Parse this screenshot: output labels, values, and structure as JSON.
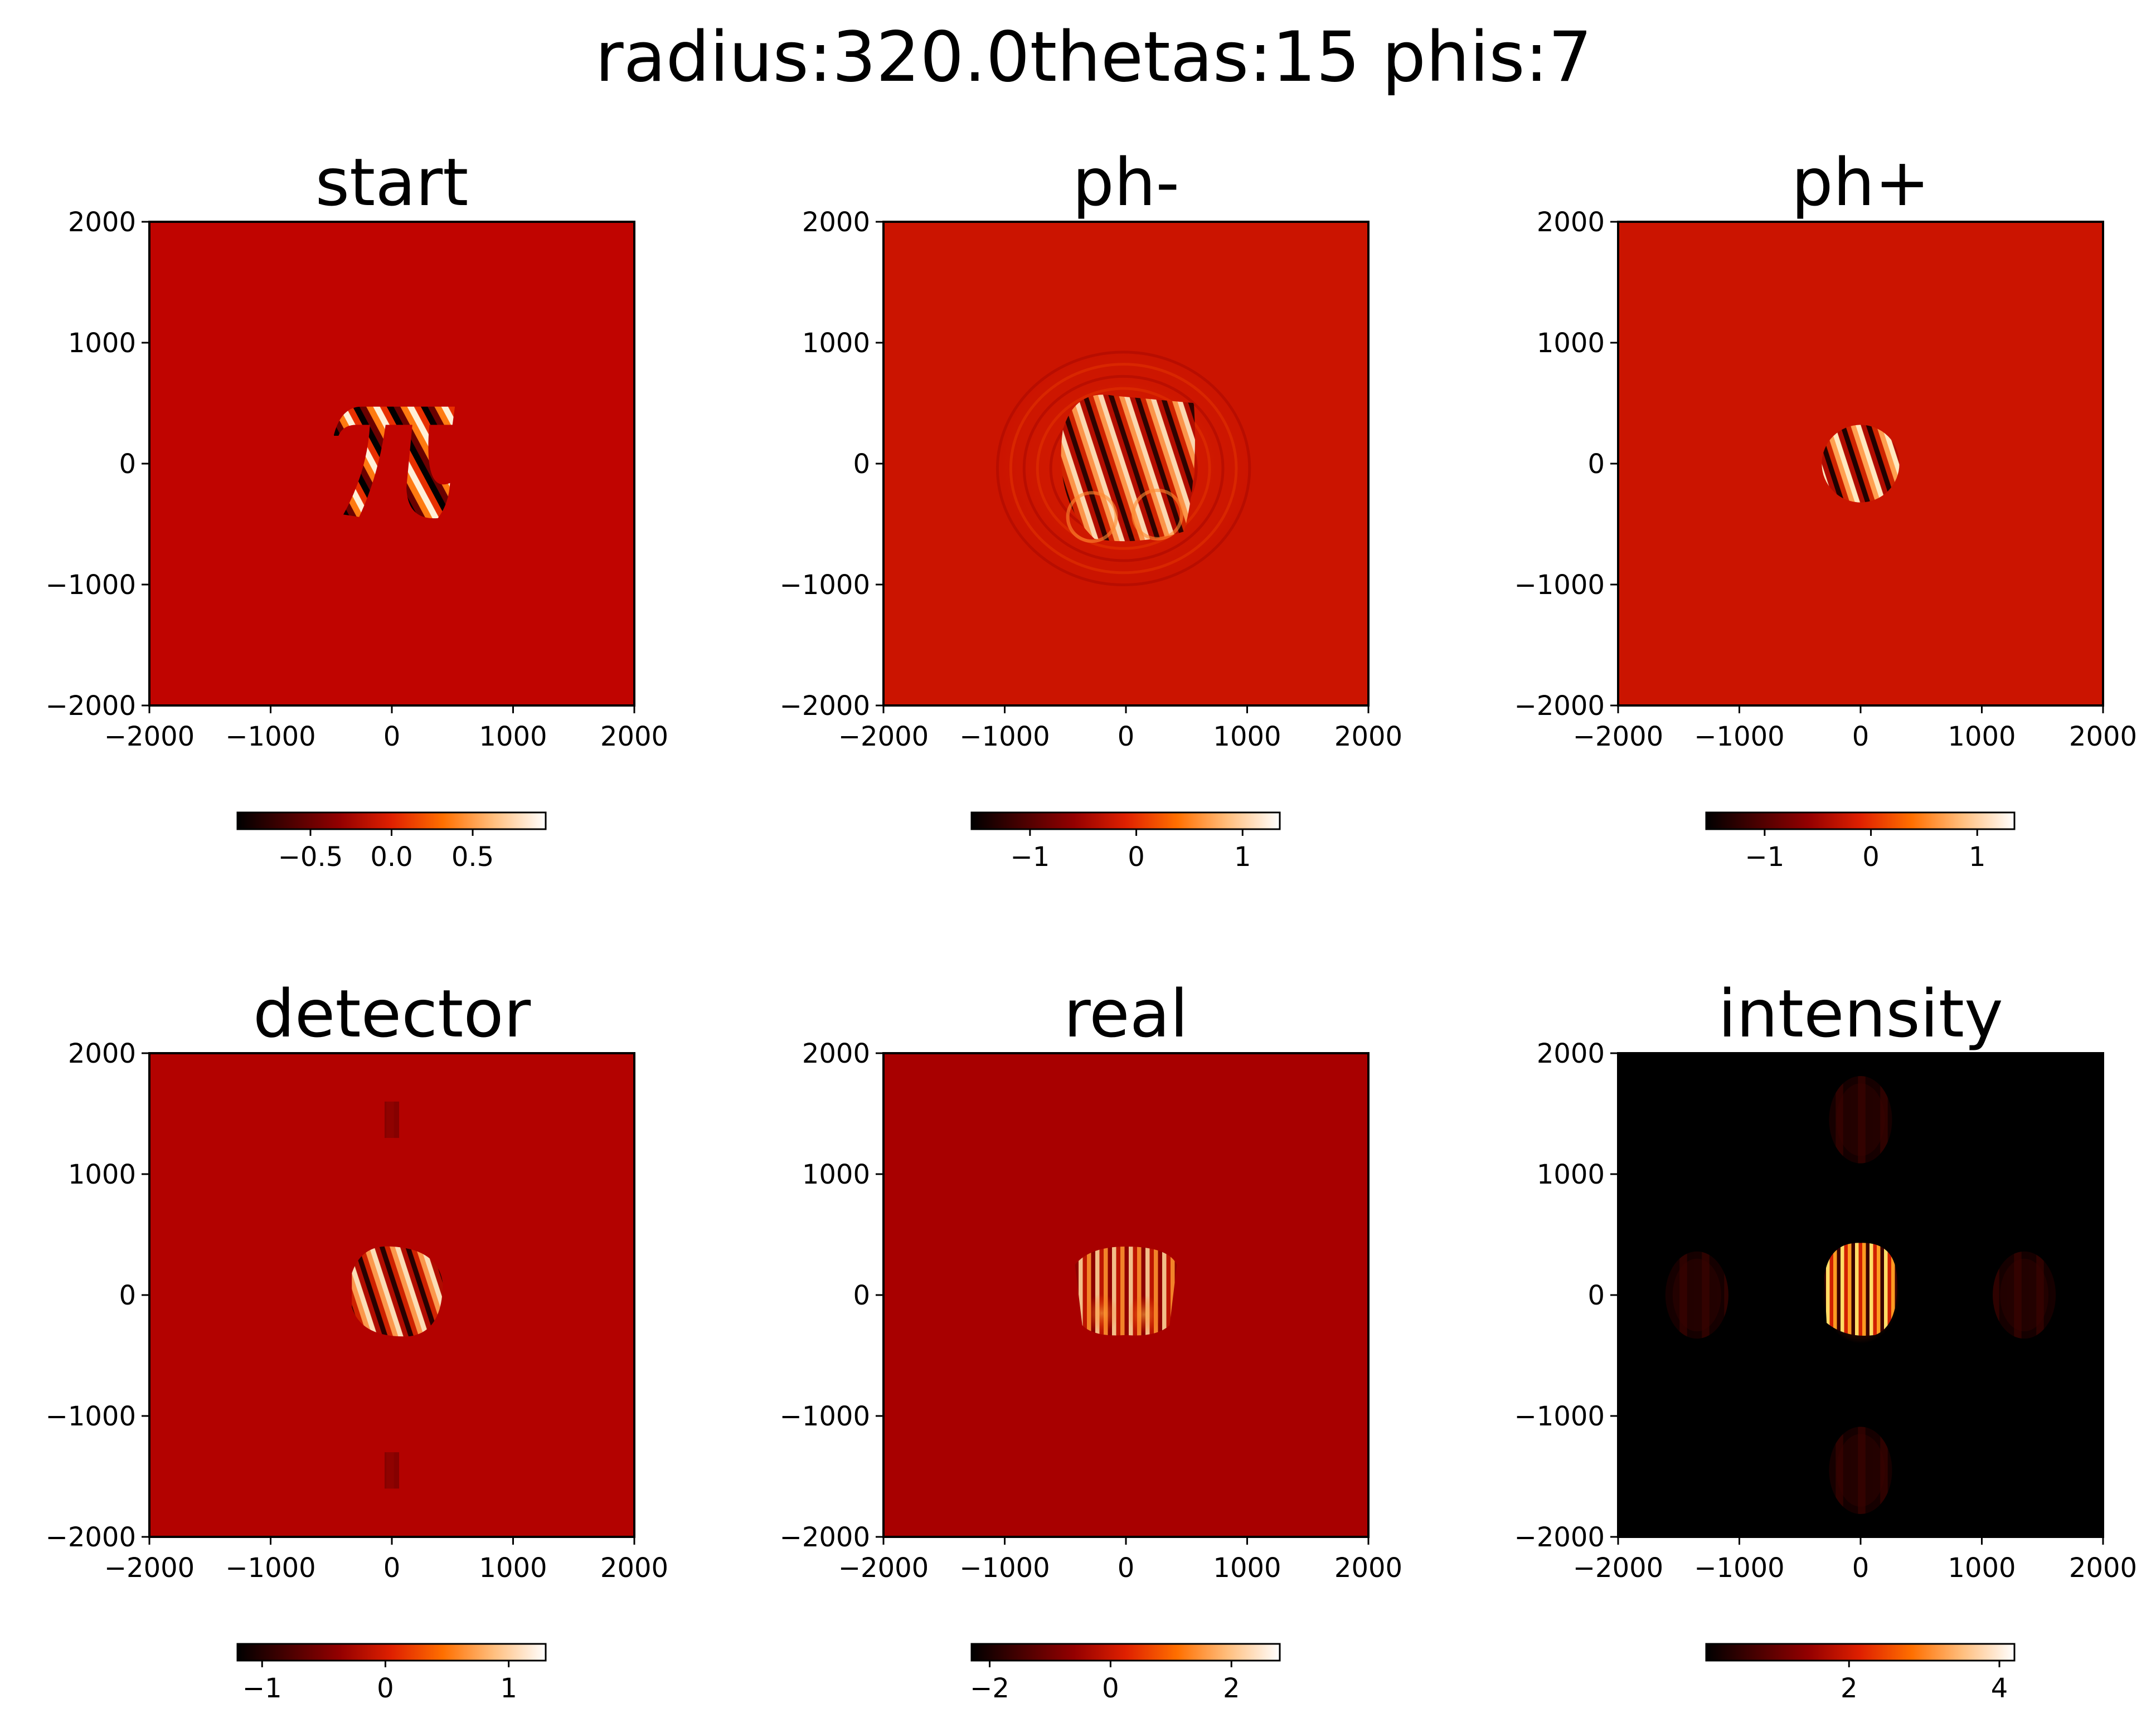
{
  "figure": {
    "suptitle": "radius:320.0thetas:15 phis:7"
  },
  "colormap": {
    "name": "gist_heat",
    "stops": [
      "#000000",
      "#4a0000",
      "#940000",
      "#df2000",
      "#ff6f00",
      "#ffbf7f",
      "#ffffff"
    ]
  },
  "chart_data": [
    {
      "type": "heatmap",
      "title": "start",
      "xlim": [
        -2000,
        2000
      ],
      "ylim": [
        -2000,
        2000
      ],
      "xticks": [
        "−2000",
        "−1000",
        "0",
        "1000",
        "2000"
      ],
      "yticks": [
        "2000",
        "1000",
        "0",
        "−1000",
        "−2000"
      ],
      "background_color": "#c00400",
      "pattern": "pi-glyph-striped",
      "colorbar": {
        "range": [
          -0.95,
          0.95
        ],
        "ticks": [
          -0.5,
          0.0,
          0.5
        ],
        "tick_labels": [
          "−0.5",
          "0.0",
          "0.5"
        ]
      }
    },
    {
      "type": "heatmap",
      "title": "ph-",
      "xlim": [
        -2000,
        2000
      ],
      "ylim": [
        -2000,
        2000
      ],
      "xticks": [
        "−2000",
        "−1000",
        "0",
        "1000",
        "2000"
      ],
      "yticks": [
        "2000",
        "1000",
        "0",
        "−1000",
        "−2000"
      ],
      "background_color": "#cb1400",
      "pattern": "diffracted-pi-ripples",
      "colorbar": {
        "range": [
          -1.55,
          1.35
        ],
        "ticks": [
          -1,
          0,
          1
        ],
        "tick_labels": [
          "−1",
          "0",
          "1"
        ]
      }
    },
    {
      "type": "heatmap",
      "title": "ph+",
      "xlim": [
        -2000,
        2000
      ],
      "ylim": [
        -2000,
        2000
      ],
      "xticks": [
        "−2000",
        "−1000",
        "0",
        "1000",
        "2000"
      ],
      "yticks": [
        "2000",
        "1000",
        "0",
        "−1000",
        "−2000"
      ],
      "background_color": "#cb1400",
      "pattern": "small-disk-320",
      "colorbar": {
        "range": [
          -1.55,
          1.35
        ],
        "ticks": [
          -1,
          0,
          1
        ],
        "tick_labels": [
          "−1",
          "0",
          "1"
        ]
      }
    },
    {
      "type": "heatmap",
      "title": "detector",
      "xlim": [
        -2000,
        2000
      ],
      "ylim": [
        -2000,
        2000
      ],
      "xticks": [
        "−2000",
        "−1000",
        "0",
        "1000",
        "2000"
      ],
      "yticks": [
        "2000",
        "1000",
        "0",
        "−1000",
        "−2000"
      ],
      "background_color": "#b30200",
      "pattern": "detector-blob",
      "colorbar": {
        "range": [
          -1.2,
          1.3
        ],
        "ticks": [
          -1,
          0,
          1
        ],
        "tick_labels": [
          "−1",
          "0",
          "1"
        ]
      }
    },
    {
      "type": "heatmap",
      "title": "real",
      "xlim": [
        -2000,
        2000
      ],
      "ylim": [
        -2000,
        2000
      ],
      "xticks": [
        "−2000",
        "−1000",
        "0",
        "1000",
        "2000"
      ],
      "yticks": [
        "2000",
        "1000",
        "0",
        "−1000",
        "−2000"
      ],
      "background_color": "#a80000",
      "pattern": "real-fringes",
      "colorbar": {
        "range": [
          -2.3,
          2.8
        ],
        "ticks": [
          -2,
          0,
          2
        ],
        "tick_labels": [
          "−2",
          "0",
          "2"
        ]
      }
    },
    {
      "type": "heatmap",
      "title": "intensity",
      "xlim": [
        -2000,
        2000
      ],
      "ylim": [
        -2000,
        2000
      ],
      "xticks": [
        "−2000",
        "−1000",
        "0",
        "1000",
        "2000"
      ],
      "yticks": [
        "2000",
        "1000",
        "0",
        "−1000",
        "−2000"
      ],
      "background_color": "#000000",
      "pattern": "intensity-cross",
      "colorbar": {
        "range": [
          0.1,
          4.2
        ],
        "ticks": [
          2,
          4
        ],
        "tick_labels": [
          "2",
          "4"
        ]
      }
    }
  ]
}
